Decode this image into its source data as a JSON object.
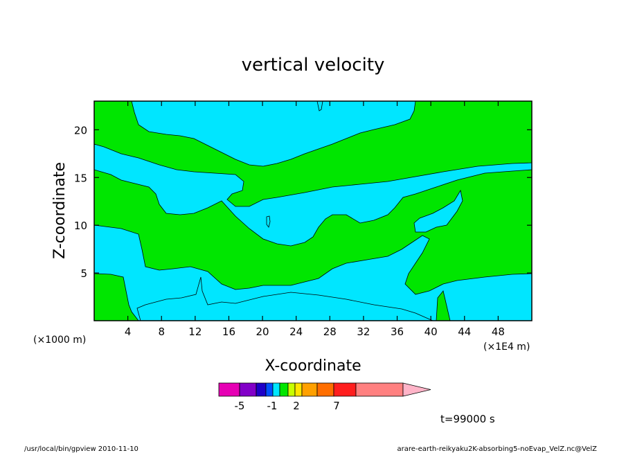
{
  "chart_data": {
    "type": "heatmap",
    "title": "vertical velocity",
    "xlabel": "X-coordinate",
    "ylabel": "Z-coordinate",
    "x_unit_left": "(×1000 m)",
    "x_unit_right": "(×1E4 m)",
    "xlim": [
      0,
      52
    ],
    "ylim": [
      0,
      23
    ],
    "x_ticks": [
      4,
      8,
      12,
      16,
      20,
      24,
      28,
      32,
      36,
      40,
      44,
      48
    ],
    "x_tick_labels": [
      "4",
      "8",
      "12",
      "16",
      "20",
      "24",
      "28",
      "32",
      "36",
      "40",
      "44",
      "48"
    ],
    "y_ticks": [
      5,
      10,
      15,
      20
    ],
    "y_tick_labels": [
      "5",
      "10",
      "15",
      "20"
    ],
    "colors": {
      "positive": "#00e600",
      "negative": "#00e6ff"
    },
    "colorbar": {
      "colors": [
        "#e600b4",
        "#8200c8",
        "#1e00c8",
        "#0050ff",
        "#00e6ff",
        "#00e600",
        "#c8ff00",
        "#ffe600",
        "#ffa000",
        "#ff6e00",
        "#ff1e1e",
        "#ff8080",
        "#ffb4c8"
      ],
      "tick_labels": [
        "-5",
        "-1",
        "2",
        "7"
      ]
    },
    "time_label": "t=99000 s"
  },
  "footer": {
    "left": "/usr/local/bin/gpview   2010-11-10",
    "right": "arare-earth-reikyaku2K-absorbing5-noEvap_VelZ.nc@VelZ"
  }
}
